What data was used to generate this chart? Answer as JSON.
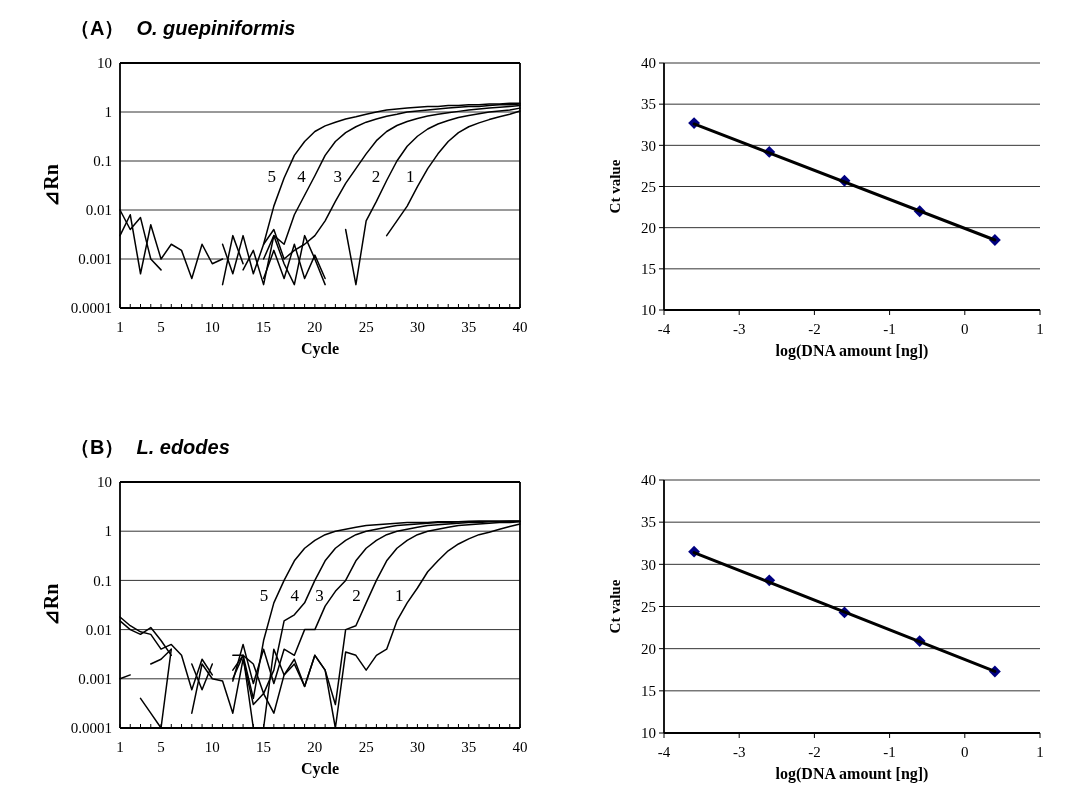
{
  "chart_data": [
    {
      "type": "line",
      "title": "（A）",
      "subtitle": "O. guepiniformis",
      "xlabel": "Cycle",
      "ylabel": "⊿Rn",
      "log": "y",
      "grid": "y",
      "xlim": [
        1,
        40
      ],
      "ylim": [
        0.0001,
        10
      ],
      "xticks": [
        1,
        {
          "value": 2,
          "label": null
        },
        {
          "value": 3,
          "label": null
        },
        {
          "value": 4,
          "label": null
        },
        5,
        {
          "value": 6,
          "label": null
        },
        {
          "value": 7,
          "label": null
        },
        {
          "value": 8,
          "label": null
        },
        {
          "value": 9,
          "label": null
        },
        10,
        {
          "value": 11,
          "label": null
        },
        {
          "value": 12,
          "label": null
        },
        {
          "value": 13,
          "label": null
        },
        {
          "value": 14,
          "label": null
        },
        15,
        {
          "value": 16,
          "label": null
        },
        {
          "value": 17,
          "label": null
        },
        {
          "value": 18,
          "label": null
        },
        {
          "value": 19,
          "label": null
        },
        20,
        {
          "value": 21,
          "label": null
        },
        {
          "value": 22,
          "label": null
        },
        {
          "value": 23,
          "label": null
        },
        {
          "value": 24,
          "label": null
        },
        25,
        {
          "value": 26,
          "label": null
        },
        {
          "value": 27,
          "label": null
        },
        {
          "value": 28,
          "label": null
        },
        {
          "value": 29,
          "label": null
        },
        30,
        {
          "value": 31,
          "label": null
        },
        {
          "value": 32,
          "label": null
        },
        {
          "value": 33,
          "label": null
        },
        {
          "value": 34,
          "label": null
        },
        35,
        {
          "value": 36,
          "label": null
        },
        {
          "value": 37,
          "label": null
        },
        {
          "value": 38,
          "label": null
        },
        {
          "value": 39,
          "label": null
        },
        40
      ],
      "yticks": [
        0.0001,
        0.001,
        0.01,
        0.1,
        1,
        10
      ],
      "x": [
        1,
        2,
        3,
        4,
        5,
        6,
        7,
        8,
        9,
        10,
        11,
        12,
        13,
        14,
        15,
        16,
        17,
        18,
        19,
        20,
        21,
        22,
        23,
        24,
        25,
        26,
        27,
        28,
        29,
        30,
        31,
        32,
        33,
        34,
        35,
        36,
        37,
        38,
        39,
        40
      ],
      "series": [
        {
          "name": "5",
          "color": "#000000",
          "values": [
            0.003,
            0.008,
            0.0005,
            0.005,
            0.001,
            0.002,
            0.0015,
            0.0004,
            0.002,
            0.0008,
            0.001,
            null,
            null,
            null,
            0.002,
            0.012,
            0.045,
            0.13,
            0.25,
            0.4,
            0.52,
            0.62,
            0.72,
            0.8,
            0.9,
            1.0,
            1.1,
            1.15,
            1.2,
            1.25,
            1.3,
            1.3,
            1.35,
            1.35,
            1.4,
            1.4,
            1.45,
            1.45,
            1.5,
            1.5
          ]
        },
        {
          "name": "4",
          "color": "#000000",
          "values": [
            0.01,
            0.004,
            0.007,
            0.001,
            0.0006,
            null,
            null,
            null,
            null,
            null,
            0.0003,
            0.003,
            0.0008,
            null,
            0.001,
            0.003,
            0.002,
            0.008,
            0.02,
            0.05,
            0.13,
            0.25,
            0.38,
            0.5,
            0.62,
            0.72,
            0.82,
            0.9,
            1.0,
            1.05,
            1.1,
            1.15,
            1.2,
            1.25,
            1.3,
            1.3,
            1.35,
            1.4,
            1.4,
            1.45
          ]
        },
        {
          "name": "3",
          "color": "#000000",
          "values": [
            null,
            null,
            null,
            null,
            null,
            null,
            null,
            null,
            null,
            null,
            0.002,
            0.0005,
            0.003,
            0.0005,
            0.002,
            0.004,
            0.001,
            0.0015,
            0.002,
            0.003,
            0.006,
            0.015,
            0.035,
            0.07,
            0.14,
            0.26,
            0.4,
            0.53,
            0.64,
            0.74,
            0.83,
            0.9,
            0.97,
            1.03,
            1.1,
            1.15,
            1.2,
            1.25,
            1.3,
            1.35
          ]
        },
        {
          "name": "2",
          "color": "#000000",
          "values": [
            null,
            null,
            null,
            null,
            null,
            null,
            null,
            null,
            null,
            null,
            null,
            null,
            0.0006,
            0.0015,
            0.0003,
            0.003,
            0.0008,
            0.0003,
            0.003,
            0.001,
            0.0003,
            null,
            0.004,
            0.0003,
            0.006,
            0.015,
            0.04,
            0.1,
            0.2,
            0.32,
            0.45,
            0.57,
            0.67,
            0.77,
            0.85,
            0.92,
            1.0,
            1.05,
            1.1,
            1.2
          ]
        },
        {
          "name": "1",
          "color": "#000000",
          "values": [
            null,
            null,
            null,
            null,
            null,
            null,
            null,
            null,
            null,
            null,
            null,
            null,
            null,
            null,
            0.0004,
            0.0015,
            0.0004,
            0.002,
            0.0004,
            0.0012,
            0.0004,
            null,
            null,
            null,
            null,
            null,
            0.003,
            0.006,
            0.012,
            0.03,
            0.07,
            0.14,
            0.25,
            0.38,
            0.5,
            0.6,
            0.7,
            0.8,
            0.9,
            1.05
          ]
        }
      ]
    },
    {
      "type": "scatter",
      "xlabel": "log(DNA amount [ng])",
      "ylabel": "Ct value",
      "grid": "y",
      "xlim": [
        -4,
        1
      ],
      "ylim": [
        10,
        40
      ],
      "xticks": [
        -4,
        -3,
        -2,
        -1,
        0,
        1
      ],
      "yticks": [
        10,
        15,
        20,
        25,
        30,
        35,
        40
      ],
      "series": [
        {
          "color": "#000080",
          "marker": "diamond",
          "x": [
            -3.6,
            -2.6,
            -1.6,
            -0.6,
            0.4
          ],
          "values": [
            32.7,
            29.2,
            25.7,
            22.0,
            18.5
          ]
        },
        {
          "type": "line",
          "color": "#000000",
          "x": [
            -3.6,
            0.4
          ],
          "values": [
            32.6,
            18.5
          ]
        }
      ]
    },
    {
      "type": "line",
      "title": "（B）",
      "subtitle": "L. edodes",
      "xlabel": "Cycle",
      "ylabel": "⊿Rn",
      "log": "y",
      "grid": "y",
      "xlim": [
        1,
        40
      ],
      "ylim": [
        0.0001,
        10
      ],
      "xticks": [
        1,
        {
          "value": 2,
          "label": null
        },
        {
          "value": 3,
          "label": null
        },
        {
          "value": 4,
          "label": null
        },
        5,
        {
          "value": 6,
          "label": null
        },
        {
          "value": 7,
          "label": null
        },
        {
          "value": 8,
          "label": null
        },
        {
          "value": 9,
          "label": null
        },
        10,
        {
          "value": 11,
          "label": null
        },
        {
          "value": 12,
          "label": null
        },
        {
          "value": 13,
          "label": null
        },
        {
          "value": 14,
          "label": null
        },
        15,
        {
          "value": 16,
          "label": null
        },
        {
          "value": 17,
          "label": null
        },
        {
          "value": 18,
          "label": null
        },
        {
          "value": 19,
          "label": null
        },
        20,
        {
          "value": 21,
          "label": null
        },
        {
          "value": 22,
          "label": null
        },
        {
          "value": 23,
          "label": null
        },
        {
          "value": 24,
          "label": null
        },
        25,
        {
          "value": 26,
          "label": null
        },
        {
          "value": 27,
          "label": null
        },
        {
          "value": 28,
          "label": null
        },
        {
          "value": 29,
          "label": null
        },
        30,
        {
          "value": 31,
          "label": null
        },
        {
          "value": 32,
          "label": null
        },
        {
          "value": 33,
          "label": null
        },
        {
          "value": 34,
          "label": null
        },
        35,
        {
          "value": 36,
          "label": null
        },
        {
          "value": 37,
          "label": null
        },
        {
          "value": 38,
          "label": null
        },
        {
          "value": 39,
          "label": null
        },
        40
      ],
      "yticks": [
        0.0001,
        0.001,
        0.01,
        0.1,
        1,
        10
      ],
      "x": [
        1,
        2,
        3,
        4,
        5,
        6,
        7,
        8,
        9,
        10,
        11,
        12,
        13,
        14,
        15,
        16,
        17,
        18,
        19,
        20,
        21,
        22,
        23,
        24,
        25,
        26,
        27,
        28,
        29,
        30,
        31,
        32,
        33,
        34,
        35,
        36,
        37,
        38,
        39,
        40
      ],
      "series": [
        {
          "name": "5",
          "color": "#000000",
          "values": [
            0.015,
            0.01,
            0.008,
            0.011,
            0.006,
            0.003,
            null,
            0.002,
            0.0006,
            0.002,
            null,
            0.003,
            0.003,
            0.0004,
            0.006,
            0.035,
            0.1,
            0.25,
            0.45,
            0.65,
            0.85,
            1.0,
            1.1,
            1.2,
            1.3,
            1.35,
            1.4,
            1.45,
            1.5,
            1.5,
            1.5,
            1.55,
            1.55,
            1.55,
            1.6,
            1.6,
            1.6,
            1.6,
            1.6,
            1.6
          ]
        },
        {
          "name": "4",
          "color": "#000000",
          "values": [
            0.001,
            0.0012,
            null,
            0.002,
            0.0025,
            0.004,
            null,
            null,
            null,
            null,
            null,
            0.001,
            0.003,
            0.002,
            0.0005,
            0.0015,
            0.015,
            0.02,
            0.035,
            0.1,
            0.25,
            0.45,
            0.65,
            0.85,
            1.0,
            1.1,
            1.2,
            1.3,
            1.35,
            1.4,
            1.45,
            1.5,
            1.5,
            1.55,
            1.55,
            1.6,
            1.6,
            1.6,
            1.6,
            1.6
          ]
        },
        {
          "name": "3",
          "color": "#000000",
          "values": [
            0.018,
            0.012,
            0.009,
            0.008,
            0.004,
            0.005,
            0.003,
            0.0006,
            0.0025,
            0.0012,
            null,
            0.0009,
            0.005,
            0.0008,
            0.004,
            0.0008,
            0.004,
            0.003,
            0.01,
            0.01,
            0.03,
            0.06,
            0.1,
            0.25,
            0.45,
            0.65,
            0.85,
            1.0,
            1.1,
            1.2,
            1.3,
            1.35,
            1.4,
            1.45,
            1.5,
            1.5,
            1.55,
            1.55,
            1.6,
            1.6
          ]
        },
        {
          "name": "2",
          "color": "#000000",
          "values": [
            null,
            null,
            0.0004,
            0.0002,
            0.0001,
            0.004,
            null,
            0.0002,
            0.002,
            0.001,
            0.0009,
            0.0002,
            0.0025,
            0.0003,
            0.0005,
            0.0002,
            0.0012,
            0.0025,
            0.0007,
            0.003,
            0.0015,
            0.0003,
            0.01,
            0.012,
            0.035,
            0.1,
            0.25,
            0.45,
            0.65,
            0.85,
            1.0,
            1.1,
            1.2,
            1.3,
            1.35,
            1.4,
            1.45,
            1.5,
            1.5,
            1.55
          ]
        },
        {
          "name": "1",
          "color": "#000000",
          "values": [
            null,
            null,
            null,
            null,
            null,
            null,
            null,
            null,
            null,
            null,
            null,
            0.0015,
            0.003,
            0.0001,
            0.0001,
            0.004,
            0.0012,
            0.002,
            0.0007,
            0.003,
            0.0015,
            0.0001,
            0.0035,
            0.003,
            0.0015,
            0.003,
            0.004,
            0.015,
            0.035,
            0.07,
            0.15,
            0.25,
            0.4,
            0.55,
            0.7,
            0.85,
            0.95,
            1.1,
            1.25,
            1.4
          ]
        }
      ]
    },
    {
      "type": "scatter",
      "xlabel": "log(DNA amount [ng])",
      "ylabel": "Ct value",
      "grid": "y",
      "xlim": [
        -4,
        1
      ],
      "ylim": [
        10,
        40
      ],
      "xticks": [
        -4,
        -3,
        -2,
        -1,
        0,
        1
      ],
      "yticks": [
        10,
        15,
        20,
        25,
        30,
        35,
        40
      ],
      "series": [
        {
          "color": "#000080",
          "marker": "diamond",
          "x": [
            -3.6,
            -2.6,
            -1.6,
            -0.6,
            0.4
          ],
          "values": [
            31.5,
            28.1,
            24.3,
            20.9,
            17.3
          ]
        },
        {
          "type": "line",
          "color": "#000000",
          "x": [
            -3.6,
            0.4
          ],
          "values": [
            31.4,
            17.3
          ]
        }
      ]
    }
  ]
}
